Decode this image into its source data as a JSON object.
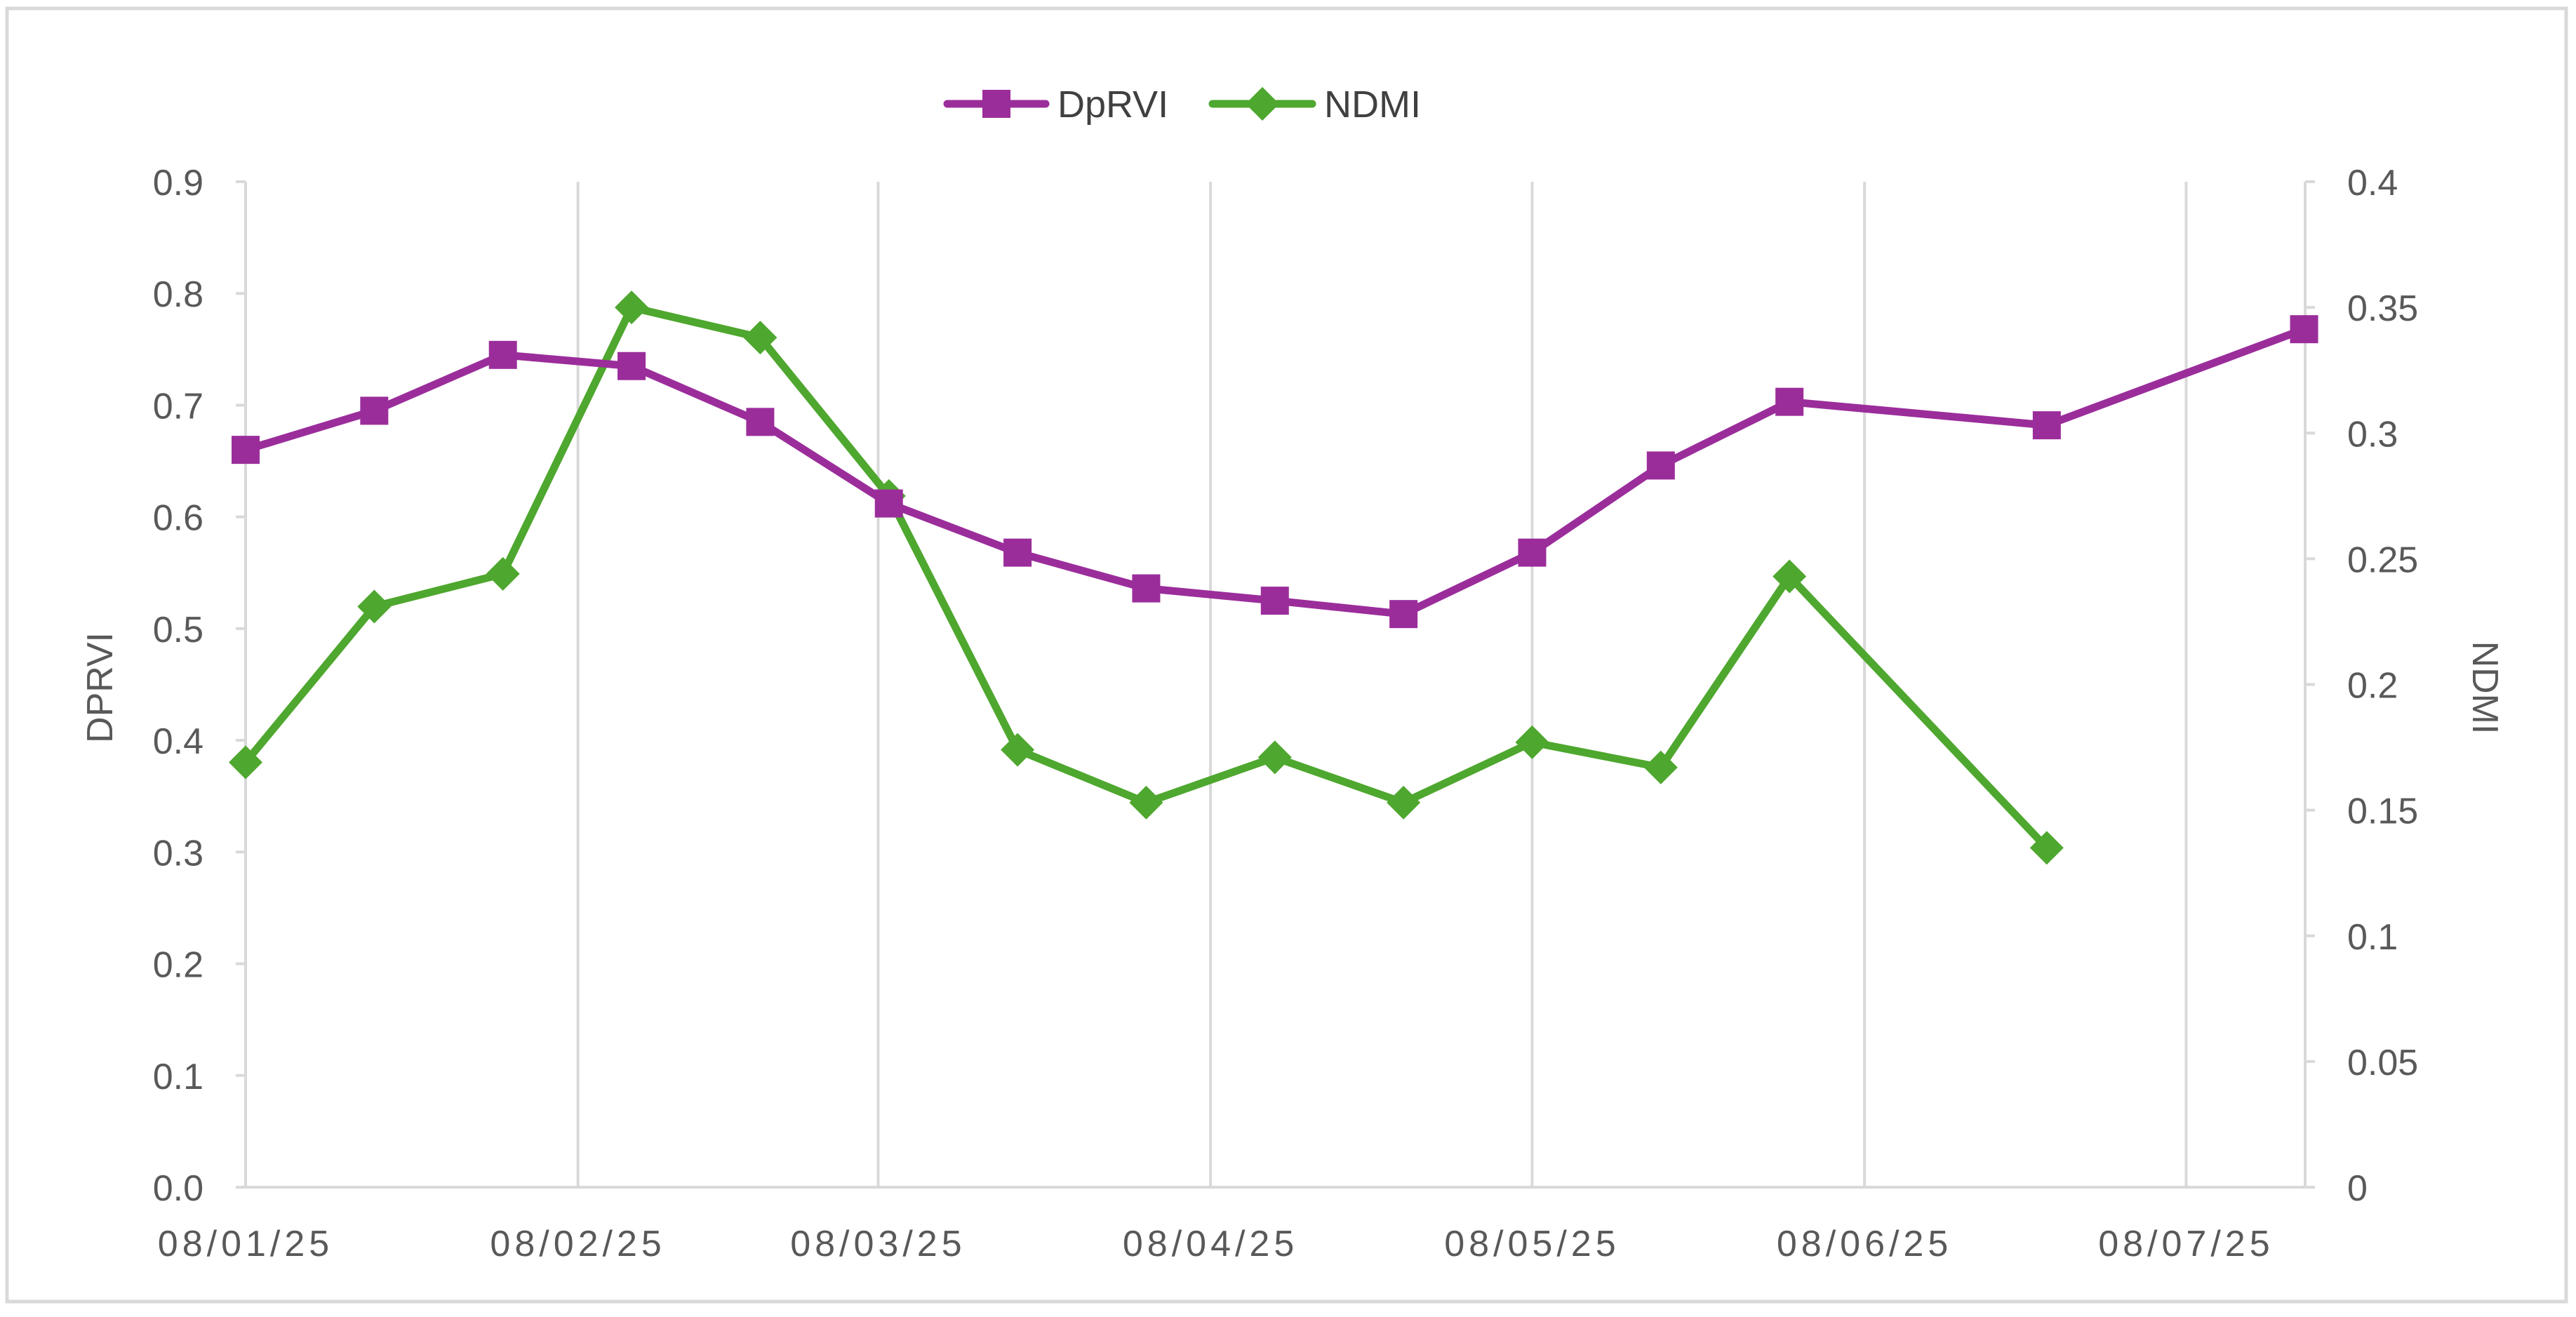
{
  "chart_data": {
    "type": "line",
    "x_axis": {
      "kind": "date",
      "range": [
        "2025-01-08",
        "2025-07-08"
      ],
      "tick_values": [
        "2025-01-08",
        "2025-02-08",
        "2025-03-08",
        "2025-04-08",
        "2025-05-08",
        "2025-06-08",
        "2025-07-08"
      ],
      "tick_labels": [
        "08/01/25",
        "08/02/25",
        "08/03/25",
        "08/04/25",
        "08/05/25",
        "08/06/25",
        "08/07/25"
      ],
      "gridlines": true
    },
    "y_axis_left": {
      "label": "DPRVI",
      "range": [
        0,
        0.9
      ],
      "ticks": [
        "0.0",
        "0.1",
        "0.2",
        "0.3",
        "0.4",
        "0.5",
        "0.6",
        "0.7",
        "0.8",
        "0.9"
      ]
    },
    "y_axis_right": {
      "label": "NDMI",
      "range": [
        0,
        0.4
      ],
      "ticks": [
        "0",
        "0.05",
        "0.1",
        "0.15",
        "0.2",
        "0.25",
        "0.3",
        "0.35",
        "0.4"
      ]
    },
    "legend_position": "top-center",
    "series": [
      {
        "name": "DpRVI",
        "axis": "left",
        "color": "#9B2D9B",
        "marker": "square",
        "x": [
          "2025-01-08",
          "2025-01-20",
          "2025-02-01",
          "2025-02-13",
          "2025-02-25",
          "2025-03-09",
          "2025-03-21",
          "2025-04-02",
          "2025-04-14",
          "2025-04-26",
          "2025-05-08",
          "2025-05-20",
          "2025-06-01",
          "2025-06-25",
          "2025-07-19"
        ],
        "y": [
          0.66,
          0.695,
          0.745,
          0.735,
          0.685,
          0.612,
          0.568,
          0.536,
          0.525,
          0.513,
          0.568,
          0.646,
          0.703,
          0.682,
          0.768
        ]
      },
      {
        "name": "NDMI",
        "axis": "right",
        "color": "#4EA72E",
        "marker": "diamond",
        "x": [
          "2025-01-08",
          "2025-01-20",
          "2025-02-01",
          "2025-02-13",
          "2025-02-25",
          "2025-03-09",
          "2025-03-21",
          "2025-04-02",
          "2025-04-14",
          "2025-04-26",
          "2025-05-08",
          "2025-05-20",
          "2025-06-01",
          "2025-06-25"
        ],
        "y": [
          0.169,
          0.231,
          0.244,
          0.35,
          0.338,
          0.275,
          0.174,
          0.153,
          0.171,
          0.153,
          0.177,
          0.167,
          0.243,
          0.135
        ]
      }
    ]
  }
}
